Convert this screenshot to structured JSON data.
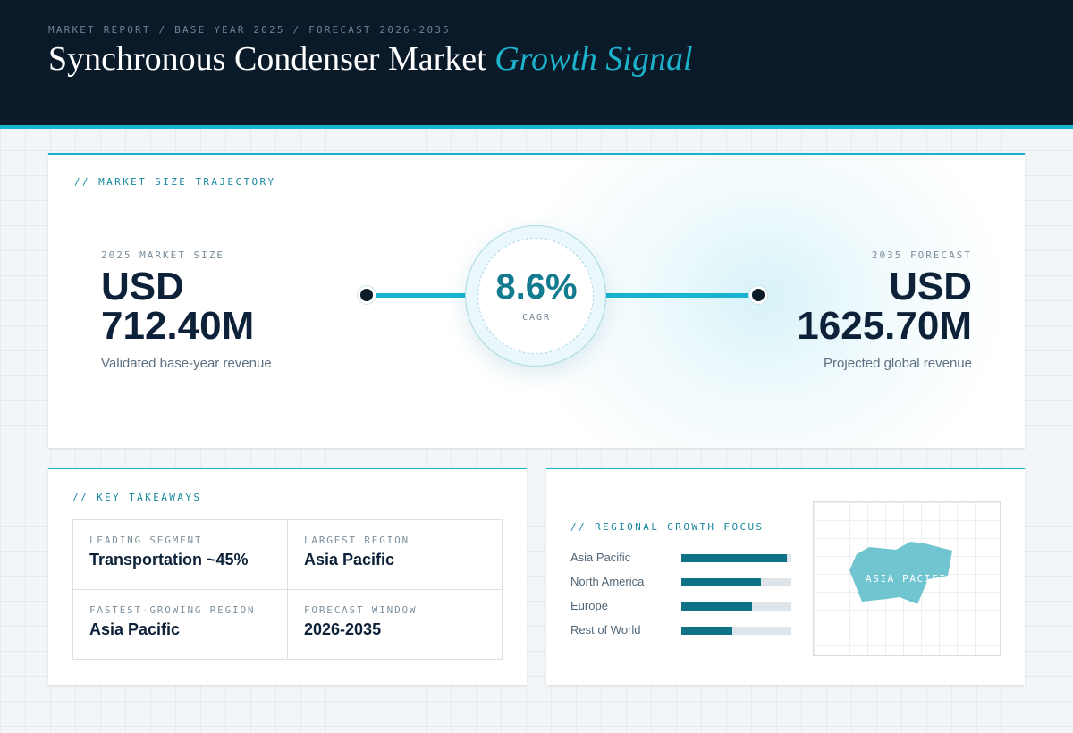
{
  "header": {
    "breadcrumb": "MARKET REPORT / BASE YEAR 2025 / FORECAST 2026-2035",
    "title_main": "Synchronous Condenser Market",
    "title_accent": "Growth Signal"
  },
  "trajectory": {
    "label": "// MARKET SIZE TRAJECTORY",
    "start": {
      "caption": "2025 MARKET SIZE",
      "currency": "USD",
      "value": "712.40M",
      "note": "Validated base-year revenue"
    },
    "end": {
      "caption": "2035 FORECAST",
      "currency": "USD",
      "value": "1625.70M",
      "note": "Projected global revenue"
    },
    "cagr": {
      "value": "8.6%",
      "label": "CAGR"
    }
  },
  "takeaways": {
    "label": "// KEY TAKEAWAYS",
    "items": [
      {
        "label": "LEADING SEGMENT",
        "value": "Transportation ~45%"
      },
      {
        "label": "LARGEST REGION",
        "value": "Asia Pacific"
      },
      {
        "label": "FASTEST-GROWING REGION",
        "value": "Asia Pacific"
      },
      {
        "label": "FORECAST WINDOW",
        "value": "2026-2035"
      }
    ]
  },
  "regional": {
    "label": "// REGIONAL GROWTH FOCUS",
    "rows": [
      {
        "name": "Asia Pacific",
        "share": 0.96
      },
      {
        "name": "North America",
        "share": 0.72
      },
      {
        "name": "Europe",
        "share": 0.64
      },
      {
        "name": "Rest of World",
        "share": 0.46
      }
    ],
    "map_label": "ASIA PACIFIC"
  },
  "colors": {
    "accent": "#18b4cf",
    "bar_fill": "#0f7385",
    "navy": "#0b1a28",
    "map_shape": "#71c5d1"
  }
}
